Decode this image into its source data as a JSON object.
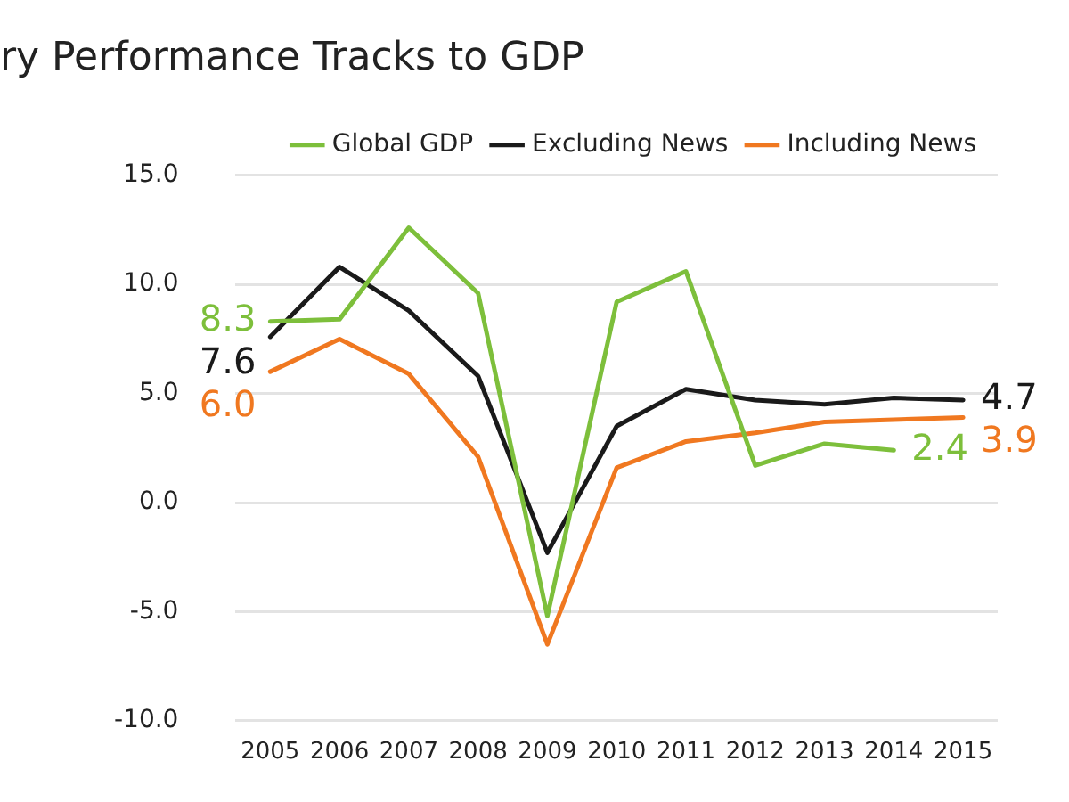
{
  "chart_data": {
    "type": "line",
    "title": "ry Performance Tracks to GDP",
    "categories": [
      "2005",
      "2006",
      "2007",
      "2008",
      "2009",
      "2010",
      "2011",
      "2012",
      "2013",
      "2014",
      "2015"
    ],
    "series": [
      {
        "name": "Global GDP",
        "color": "#7dbf3b",
        "values": [
          8.3,
          8.4,
          12.6,
          9.6,
          -5.2,
          9.2,
          10.6,
          1.7,
          2.7,
          2.4,
          null
        ],
        "value_labels": [
          "8.3",
          null,
          null,
          null,
          null,
          null,
          null,
          null,
          null,
          "2.4",
          null
        ]
      },
      {
        "name": "Excluding News",
        "color": "#1a1a1a",
        "values": [
          7.6,
          10.8,
          8.8,
          5.8,
          -2.3,
          3.5,
          5.2,
          4.7,
          4.5,
          4.8,
          4.7
        ],
        "value_labels": [
          "7.6",
          null,
          null,
          null,
          null,
          null,
          null,
          null,
          null,
          null,
          "4.7"
        ]
      },
      {
        "name": "Including News",
        "color": "#f07820",
        "values": [
          6.0,
          7.5,
          5.9,
          2.1,
          -6.5,
          1.6,
          2.8,
          3.2,
          3.7,
          3.8,
          3.9
        ],
        "value_labels": [
          "6.0",
          null,
          null,
          null,
          null,
          null,
          null,
          null,
          null,
          null,
          "3.9"
        ]
      }
    ],
    "ylim": [
      -10,
      15
    ],
    "yticks": [
      {
        "value": -10,
        "label": "-10.0"
      },
      {
        "value": -5,
        "label": "-5.0"
      },
      {
        "value": 0,
        "label": "0.0"
      },
      {
        "value": 5,
        "label": "5.0"
      },
      {
        "value": 10,
        "label": "10.0"
      },
      {
        "value": 15,
        "label": "15.0"
      }
    ],
    "grid": "y",
    "legend": "top right",
    "marker": "none",
    "line_style": "solid"
  }
}
